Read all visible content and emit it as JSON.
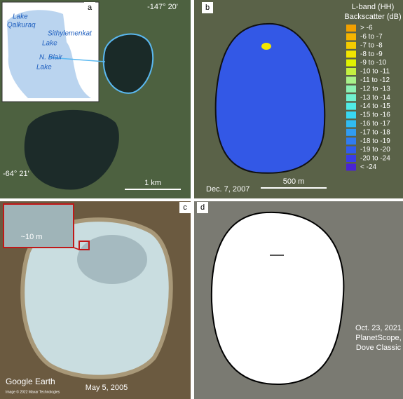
{
  "panel_a": {
    "letter": "a",
    "lake_labels": [
      [
        "Lake",
        "Qalkuraq"
      ],
      [
        "Sithylemenkat",
        "Lake"
      ],
      [
        "N. Blair",
        "Lake"
      ]
    ],
    "longitude": "-147° 20'",
    "latitude": "-64° 21'",
    "scale": "1 km"
  },
  "panel_b": {
    "letter": "b",
    "legend_title": [
      "L-band (HH)",
      "Backscatter (dB)"
    ],
    "legend": [
      {
        "label": "> -6",
        "color": "#f0a000"
      },
      {
        "label": "-6 to -7",
        "color": "#f4b400"
      },
      {
        "label": "-7 to -8",
        "color": "#f5cc00"
      },
      {
        "label": "-8 to -9",
        "color": "#f2e600"
      },
      {
        "label": "-9 to -10",
        "color": "#e0f200"
      },
      {
        "label": "-10 to -11",
        "color": "#c4f040"
      },
      {
        "label": "-11 to -12",
        "color": "#a8f08a"
      },
      {
        "label": "-12 to -13",
        "color": "#8cf0b4"
      },
      {
        "label": "-13 to -14",
        "color": "#70f0d0"
      },
      {
        "label": "-14 to -15",
        "color": "#50ece6"
      },
      {
        "label": "-15 to -16",
        "color": "#38d8f2"
      },
      {
        "label": "-16 to -17",
        "color": "#30bcf2"
      },
      {
        "label": "-17 to -18",
        "color": "#309cf2"
      },
      {
        "label": "-18 to -19",
        "color": "#307cf0"
      },
      {
        "label": "-19 to -20",
        "color": "#305cee"
      },
      {
        "label": "-20 to -24",
        "color": "#3a3ce8"
      },
      {
        "label": "< -24",
        "color": "#4a24d4"
      }
    ],
    "date": "Dec. 7, 2007",
    "scale": "500 m"
  },
  "panel_c": {
    "letter": "c",
    "inset_scale": "~10 m",
    "source": "Google Earth",
    "credit": "Image © 2022 Maxar Technologies",
    "date": "May 5, 2005"
  },
  "panel_d": {
    "letter": "d",
    "caption": [
      "Oct. 23, 2021",
      "PlanetScope,",
      "Dove Classic"
    ]
  }
}
